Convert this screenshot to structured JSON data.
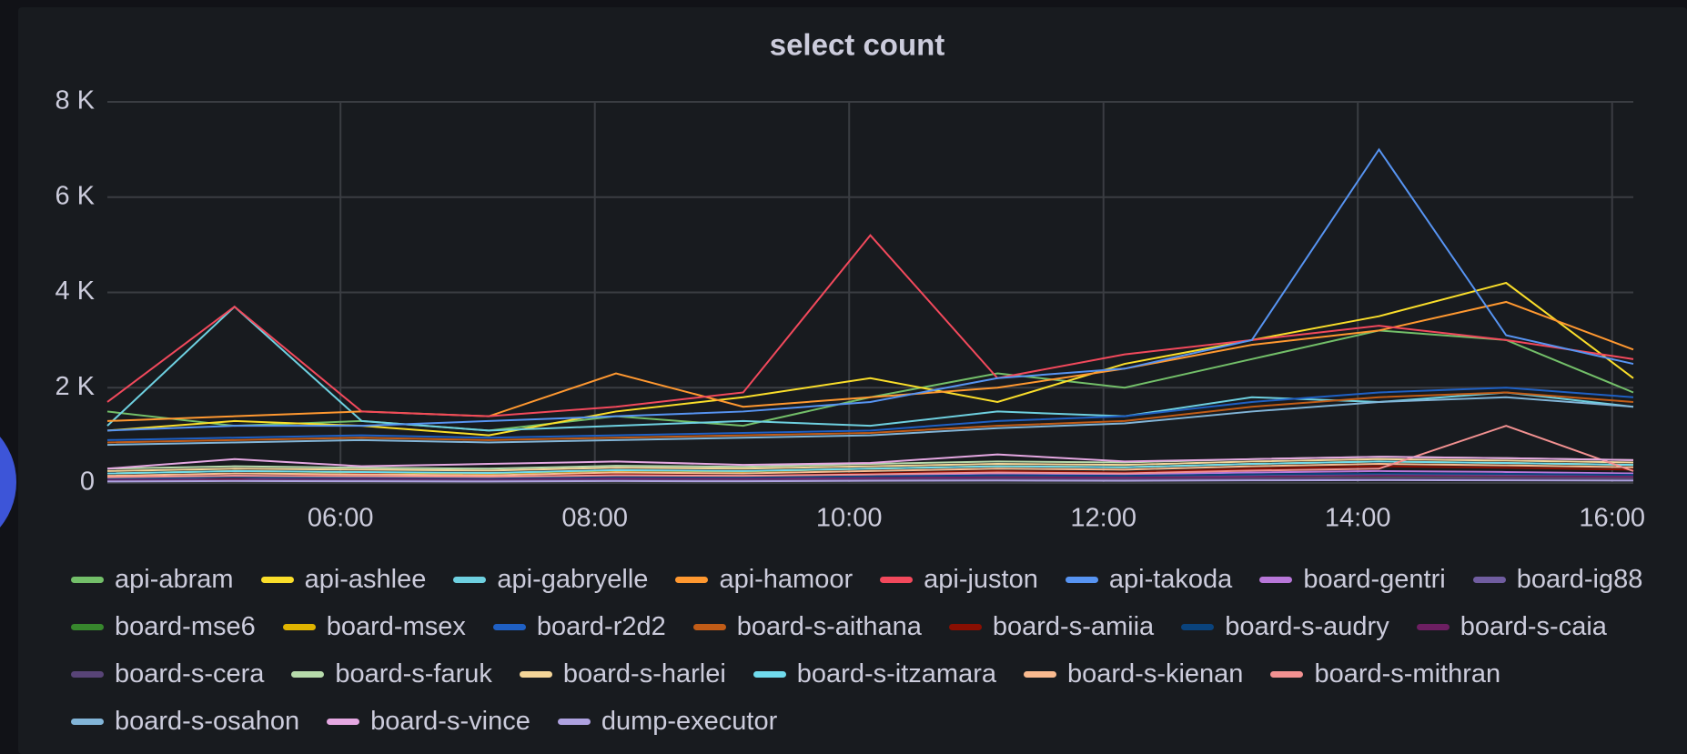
{
  "chart_data": {
    "type": "line",
    "title": "select count",
    "x": [
      "04:10",
      "05:10",
      "06:10",
      "07:10",
      "08:10",
      "09:10",
      "10:10",
      "11:10",
      "12:10",
      "13:10",
      "14:10",
      "15:10",
      "16:10"
    ],
    "xlim": [
      "04:10",
      "16:10"
    ],
    "xticks": [
      "06:00",
      "08:00",
      "10:00",
      "12:00",
      "14:00",
      "16:00"
    ],
    "ylim": [
      0,
      8000
    ],
    "yticks": [
      {
        "value": 0,
        "label": "0"
      },
      {
        "value": 2000,
        "label": "2 K"
      },
      {
        "value": 4000,
        "label": "4 K"
      },
      {
        "value": 6000,
        "label": "6 K"
      },
      {
        "value": 8000,
        "label": "8 K"
      }
    ],
    "grid": true,
    "series": [
      {
        "name": "api-abram",
        "color": "#73bf69",
        "values": [
          1500,
          1200,
          1300,
          1100,
          1400,
          1200,
          1800,
          2300,
          2000,
          2600,
          3200,
          3000,
          1900
        ]
      },
      {
        "name": "api-ashlee",
        "color": "#fade2a",
        "values": [
          1100,
          1300,
          1200,
          1000,
          1500,
          1800,
          2200,
          1700,
          2500,
          3000,
          3500,
          4200,
          2200
        ]
      },
      {
        "name": "api-gabryelle",
        "color": "#6ed0e0",
        "values": [
          1200,
          3700,
          1300,
          1100,
          1200,
          1300,
          1200,
          1500,
          1400,
          1800,
          1700,
          1900,
          1600
        ]
      },
      {
        "name": "api-hamoor",
        "color": "#ff9830",
        "values": [
          1300,
          1400,
          1500,
          1400,
          2300,
          1600,
          1800,
          2000,
          2400,
          2900,
          3200,
          3800,
          2800
        ]
      },
      {
        "name": "api-juston",
        "color": "#f2495c",
        "values": [
          1700,
          3700,
          1500,
          1400,
          1600,
          1900,
          5200,
          2200,
          2700,
          3000,
          3300,
          3000,
          2600
        ]
      },
      {
        "name": "api-takoda",
        "color": "#5794f2",
        "values": [
          1100,
          1200,
          1200,
          1300,
          1400,
          1500,
          1700,
          2200,
          2400,
          3000,
          7000,
          3100,
          2500
        ]
      },
      {
        "name": "board-gentri",
        "color": "#b877d9",
        "values": [
          100,
          150,
          120,
          100,
          140,
          130,
          160,
          200,
          180,
          220,
          250,
          230,
          200
        ]
      },
      {
        "name": "board-ig88",
        "color": "#705da0",
        "values": [
          80,
          90,
          100,
          90,
          110,
          100,
          120,
          150,
          140,
          160,
          180,
          170,
          150
        ]
      },
      {
        "name": "board-mse6",
        "color": "#37872d",
        "values": [
          50,
          60,
          70,
          60,
          80,
          70,
          90,
          110,
          100,
          120,
          140,
          130,
          120
        ]
      },
      {
        "name": "board-msex",
        "color": "#e0b400",
        "values": [
          200,
          250,
          220,
          200,
          260,
          240,
          300,
          350,
          330,
          400,
          450,
          420,
          380
        ]
      },
      {
        "name": "board-r2d2",
        "color": "#1f60c4",
        "values": [
          900,
          950,
          1000,
          950,
          1000,
          1050,
          1100,
          1300,
          1400,
          1700,
          1900,
          2000,
          1800
        ]
      },
      {
        "name": "board-s-aithana",
        "color": "#c15c17",
        "values": [
          850,
          900,
          950,
          900,
          950,
          1000,
          1050,
          1200,
          1300,
          1600,
          1800,
          1900,
          1700
        ]
      },
      {
        "name": "board-s-amiia",
        "color": "#890f02",
        "values": [
          150,
          100,
          200,
          120,
          180,
          150,
          200,
          250,
          220,
          300,
          350,
          320,
          280
        ]
      },
      {
        "name": "board-s-audry",
        "color": "#0a437c",
        "values": [
          100,
          120,
          110,
          100,
          130,
          120,
          140,
          160,
          150,
          180,
          200,
          190,
          170
        ]
      },
      {
        "name": "board-s-caia",
        "color": "#6d1f62",
        "values": [
          60,
          70,
          80,
          70,
          90,
          80,
          100,
          120,
          110,
          130,
          150,
          140,
          130
        ]
      },
      {
        "name": "board-s-cera",
        "color": "#584477",
        "values": [
          40,
          50,
          60,
          50,
          60,
          55,
          70,
          80,
          75,
          90,
          100,
          95,
          90
        ]
      },
      {
        "name": "board-s-faruk",
        "color": "#b7dbab",
        "values": [
          300,
          350,
          320,
          300,
          360,
          340,
          400,
          450,
          430,
          500,
          550,
          520,
          480
        ]
      },
      {
        "name": "board-s-harlei",
        "color": "#f4d598",
        "values": [
          250,
          300,
          280,
          260,
          320,
          300,
          350,
          400,
          380,
          450,
          500,
          470,
          430
        ]
      },
      {
        "name": "board-s-itzamara",
        "color": "#70dbed",
        "values": [
          200,
          250,
          230,
          210,
          270,
          250,
          300,
          350,
          330,
          400,
          450,
          420,
          380
        ]
      },
      {
        "name": "board-s-kienan",
        "color": "#f9ba8f",
        "values": [
          150,
          200,
          180,
          160,
          220,
          200,
          250,
          300,
          280,
          350,
          400,
          370,
          330
        ]
      },
      {
        "name": "board-s-mithran",
        "color": "#f29191",
        "values": [
          120,
          150,
          140,
          130,
          160,
          150,
          180,
          220,
          200,
          260,
          300,
          1200,
          250
        ]
      },
      {
        "name": "board-s-osahon",
        "color": "#82b5d8",
        "values": [
          800,
          850,
          900,
          850,
          900,
          950,
          1000,
          1150,
          1250,
          1500,
          1700,
          1800,
          1600
        ]
      },
      {
        "name": "board-s-vince",
        "color": "#e5a8e2",
        "values": [
          300,
          500,
          350,
          400,
          450,
          380,
          420,
          600,
          450,
          500,
          550,
          520,
          480
        ]
      },
      {
        "name": "dump-executor",
        "color": "#aea2e0",
        "values": [
          30,
          40,
          35,
          30,
          40,
          35,
          45,
          50,
          45,
          55,
          60,
          55,
          50
        ]
      }
    ]
  }
}
